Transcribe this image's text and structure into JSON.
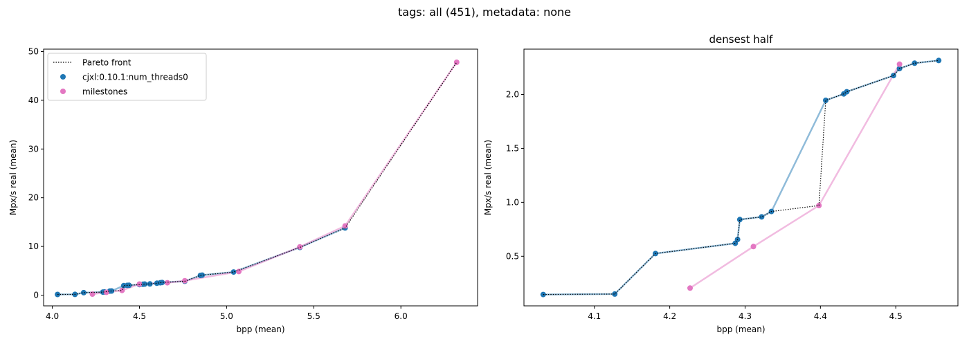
{
  "suptitle": "tags: all (451), metadata: none",
  "colors": {
    "cjxl": "#1f77b4",
    "milestones": "#e377c2",
    "pareto": "#000000"
  },
  "chart_data": [
    {
      "type": "scatter",
      "title": "",
      "xlabel": "bpp (mean)",
      "ylabel": "Mpx/s real (mean)",
      "xlim": [
        3.95,
        6.44
      ],
      "ylim": [
        -2.2,
        50.5
      ],
      "xticks": [
        4.0,
        4.5,
        5.0,
        5.5,
        6.0
      ],
      "yticks": [
        0,
        10,
        20,
        30,
        40,
        50
      ],
      "xtick_labels": [
        "4.0",
        "4.5",
        "5.0",
        "5.5",
        "6.0"
      ],
      "ytick_labels": [
        "0",
        "10",
        "20",
        "30",
        "40",
        "50"
      ],
      "legend_position": "top-left",
      "legend": [
        {
          "label": "Pareto front",
          "kind": "dotted-line"
        },
        {
          "label": "cjxl:0.10.1:num_threads0",
          "kind": "marker",
          "color": "cjxl"
        },
        {
          "label": "milestones",
          "kind": "marker",
          "color": "milestones"
        }
      ],
      "series": [
        {
          "name": "cjxl:0.10.1:num_threads0",
          "color": "cjxl",
          "x": [
            4.03,
            4.13,
            4.18,
            4.29,
            4.3,
            4.33,
            4.34,
            4.41,
            4.43,
            4.44,
            4.5,
            4.52,
            4.53,
            4.56,
            4.6,
            4.62,
            4.63,
            4.76,
            4.85,
            4.86,
            5.04,
            5.42,
            5.68
          ],
          "y": [
            0.15,
            0.16,
            0.52,
            0.62,
            0.66,
            0.84,
            0.86,
            1.95,
            2.0,
            2.02,
            2.17,
            2.23,
            2.28,
            2.31,
            2.45,
            2.55,
            2.6,
            2.85,
            4.05,
            4.1,
            4.75,
            9.8,
            13.8
          ]
        },
        {
          "name": "milestones",
          "color": "milestones",
          "x": [
            4.23,
            4.31,
            4.4,
            4.5,
            4.66,
            4.76,
            5.07,
            5.42,
            5.68,
            6.32
          ],
          "y": [
            0.21,
            0.59,
            0.97,
            2.28,
            2.55,
            2.95,
            4.85,
            9.9,
            14.2,
            47.8
          ]
        }
      ],
      "pareto_front": {
        "x": [
          4.03,
          4.13,
          4.18,
          4.29,
          4.3,
          4.33,
          4.34,
          4.4,
          4.41,
          4.43,
          4.44,
          4.5,
          4.52,
          4.53,
          4.56,
          4.6,
          4.62,
          4.63,
          4.76,
          4.85,
          4.86,
          5.04,
          5.42,
          5.68,
          6.32
        ],
        "y": [
          0.15,
          0.16,
          0.52,
          0.62,
          0.66,
          0.84,
          0.86,
          0.97,
          1.95,
          2.0,
          2.02,
          2.17,
          2.23,
          2.28,
          2.31,
          2.45,
          2.55,
          2.6,
          2.85,
          4.05,
          4.1,
          4.75,
          9.8,
          13.8,
          47.8
        ]
      }
    },
    {
      "type": "scatter",
      "title": "densest half",
      "xlabel": "bpp (mean)",
      "ylabel": "Mpx/s real (mean)",
      "xlim": [
        4.0065,
        4.5825
      ],
      "ylim": [
        0.04,
        2.42
      ],
      "xticks": [
        4.1,
        4.2,
        4.3,
        4.4,
        4.5
      ],
      "yticks": [
        0.5,
        1.0,
        1.5,
        2.0
      ],
      "xtick_labels": [
        "4.1",
        "4.2",
        "4.3",
        "4.4",
        "4.5"
      ],
      "ytick_labels": [
        "0.5",
        "1.0",
        "1.5",
        "2.0"
      ],
      "series": [
        {
          "name": "cjxl:0.10.1:num_threads0",
          "color": "cjxl",
          "x": [
            4.032,
            4.127,
            4.181,
            4.287,
            4.29,
            4.293,
            4.322,
            4.335,
            4.407,
            4.431,
            4.435,
            4.497,
            4.505,
            4.525,
            4.557
          ],
          "y": [
            0.145,
            0.15,
            0.525,
            0.62,
            0.655,
            0.84,
            0.865,
            0.915,
            1.945,
            2.005,
            2.025,
            2.175,
            2.24,
            2.29,
            2.315
          ]
        },
        {
          "name": "milestones",
          "color": "milestones",
          "x": [
            4.227,
            4.311,
            4.398,
            4.505
          ],
          "y": [
            0.205,
            0.59,
            0.97,
            2.28
          ]
        }
      ],
      "pareto_front": {
        "x": [
          4.032,
          4.127,
          4.181,
          4.287,
          4.29,
          4.293,
          4.322,
          4.335,
          4.398,
          4.407,
          4.431,
          4.435,
          4.497,
          4.505,
          4.525,
          4.557
        ],
        "y": [
          0.145,
          0.15,
          0.525,
          0.62,
          0.655,
          0.84,
          0.865,
          0.915,
          0.97,
          1.945,
          2.005,
          2.025,
          2.175,
          2.24,
          2.29,
          2.315
        ]
      }
    }
  ]
}
